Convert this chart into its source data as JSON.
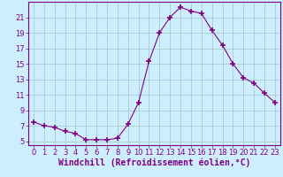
{
  "x": [
    0,
    1,
    2,
    3,
    4,
    5,
    6,
    7,
    8,
    9,
    10,
    11,
    12,
    13,
    14,
    15,
    16,
    17,
    18,
    19,
    20,
    21,
    22,
    23
  ],
  "y": [
    7.5,
    7.0,
    6.8,
    6.3,
    6.0,
    5.2,
    5.2,
    5.2,
    5.4,
    7.2,
    10.0,
    15.3,
    19.0,
    21.0,
    22.3,
    21.8,
    21.5,
    19.3,
    17.4,
    15.0,
    13.2,
    12.5,
    11.2,
    10.0
  ],
  "line_color": "#800080",
  "marker": "+",
  "marker_size": 4,
  "marker_linewidth": 1.2,
  "bg_color": "#cceeff",
  "grid_color": "#aacccc",
  "xlabel": "Windchill (Refroidissement éolien,°C)",
  "ylabel": "",
  "title": "",
  "xlim": [
    -0.5,
    23.5
  ],
  "ylim": [
    4.5,
    23.0
  ],
  "yticks": [
    5,
    7,
    9,
    11,
    13,
    15,
    17,
    19,
    21
  ],
  "xticks": [
    0,
    1,
    2,
    3,
    4,
    5,
    6,
    7,
    8,
    9,
    10,
    11,
    12,
    13,
    14,
    15,
    16,
    17,
    18,
    19,
    20,
    21,
    22,
    23
  ],
  "tick_label_fontsize": 6.0,
  "xlabel_fontsize": 7.0,
  "linewidth": 0.8
}
